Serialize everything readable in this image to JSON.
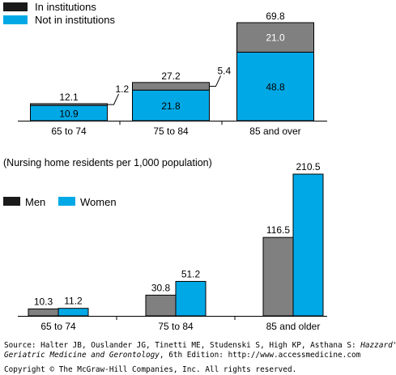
{
  "colors": {
    "dark": "#1a1a1a",
    "gray": "#808080",
    "cyan": "#00a9e6",
    "text": "#000000",
    "white": "#ffffff"
  },
  "chart_data": [
    {
      "type": "bar",
      "stacked": true,
      "title": "",
      "categories": [
        "65 to 74",
        "75 to 84",
        "85 and over"
      ],
      "series": [
        {
          "name": "Not in institutions",
          "values": [
            10.9,
            21.8,
            48.8
          ],
          "color": "#00a9e6"
        },
        {
          "name": "In institutions",
          "values": [
            1.2,
            5.4,
            21.0
          ],
          "color": "#808080"
        }
      ],
      "totals": [
        12.1,
        27.2,
        69.8
      ],
      "legend": [
        {
          "label": "In institutions",
          "color": "#1a1a1a"
        },
        {
          "label": "Not in institutions",
          "color": "#00a9e6"
        }
      ],
      "legend_position": "top-left",
      "ylim": [
        0,
        69.8
      ],
      "grid": false
    },
    {
      "type": "bar",
      "title": "(Nursing home residents per 1,000 population)",
      "categories": [
        "65 to 74",
        "75 to 84",
        "85 and older"
      ],
      "series": [
        {
          "name": "Men",
          "values": [
            10.3,
            30.8,
            116.5
          ],
          "color": "#808080"
        },
        {
          "name": "Women",
          "values": [
            11.2,
            51.2,
            210.5
          ],
          "color": "#00a9e6"
        }
      ],
      "legend": [
        {
          "label": "Men",
          "color": "#1a1a1a"
        },
        {
          "label": "Women",
          "color": "#00a9e6"
        }
      ],
      "legend_position": "top-left",
      "ylim": [
        0,
        210.5
      ],
      "grid": false
    }
  ],
  "footer": {
    "source_prefix": "Source: Halter JB, Ouslander JG, Tinetti ME, Studenski S, High KP, Asthana S: ",
    "source_title_1": "Hazzard's",
    "source_title_2": "Geriatric Medicine and Gerontology",
    "source_suffix": ", 6th Edition: http://www.accessmedicine.com",
    "copyright": "Copyright © The McGraw-Hill Companies, Inc. All rights reserved."
  }
}
